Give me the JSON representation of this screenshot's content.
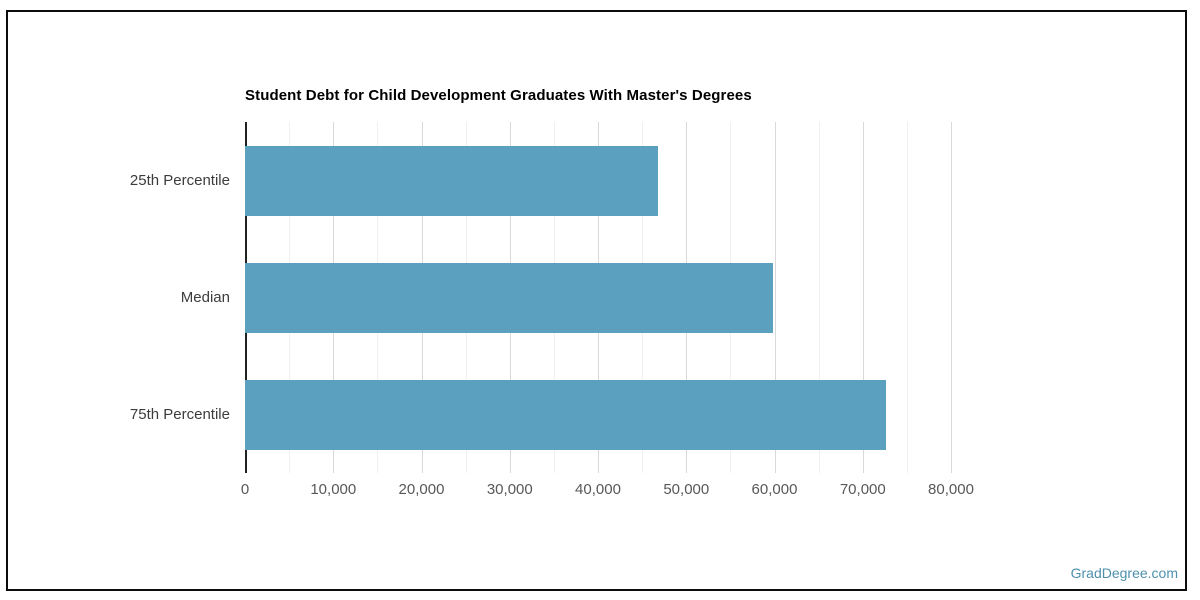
{
  "page": {
    "background_color": "#ffffff",
    "frame_border_color": "#0c0c0c"
  },
  "chart_data": {
    "type": "bar",
    "orientation": "horizontal",
    "title": "Student Debt for Child Development Graduates With Master's Degrees",
    "categories": [
      "25th Percentile",
      "Median",
      "75th Percentile"
    ],
    "values": [
      46800,
      59800,
      72600
    ],
    "xlabel": "",
    "ylabel": "",
    "xlim": [
      0,
      80000
    ],
    "x_major_ticks": [
      0,
      10000,
      20000,
      30000,
      40000,
      50000,
      60000,
      70000,
      80000
    ],
    "x_tick_labels": [
      "0",
      "10,000",
      "20,000",
      "30,000",
      "40,000",
      "50,000",
      "60,000",
      "70,000",
      "80,000"
    ],
    "minor_grid_step": 5000,
    "grid": true,
    "legend": "none",
    "bar_color": "#5ba0bf",
    "major_grid_color": "#d9d9d9",
    "minor_grid_color": "#f0f0f0",
    "axis_line_color": "#212121",
    "tick_label_color": "#58585a",
    "category_label_color": "#3c3c3c"
  },
  "watermark": {
    "text": "GradDegree.com",
    "color": "#4e8fae"
  }
}
